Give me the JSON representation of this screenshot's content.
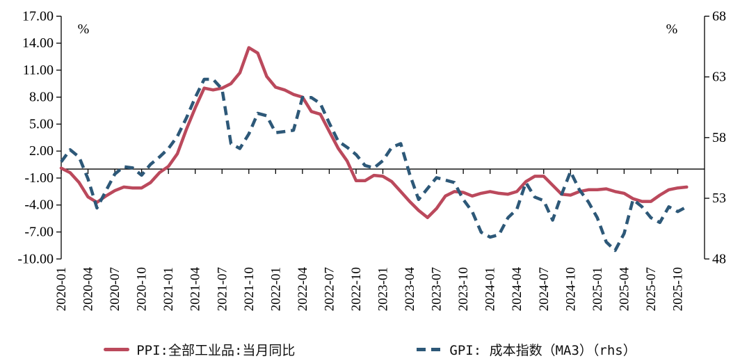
{
  "chart": {
    "left_axis": {
      "unit": "%",
      "tick_labels": [
        "17.00",
        "14.00",
        "11.00",
        "8.00",
        "5.00",
        "2.00",
        "-1.00",
        "-4.00",
        "-7.00",
        "-10.00"
      ],
      "tick_values": [
        17,
        14,
        11,
        8,
        5,
        2,
        -1,
        -4,
        -7,
        -10
      ],
      "min": -10,
      "max": 17
    },
    "right_axis": {
      "unit": "%",
      "tick_labels": [
        "68",
        "63",
        "58",
        "53",
        "48"
      ],
      "tick_values": [
        68,
        63,
        58,
        53,
        48
      ],
      "min": 48,
      "max": 68
    },
    "x_axis": {
      "tick_labels": [
        "2020-01",
        "2020-04",
        "2020-07",
        "2020-10",
        "2021-01",
        "2021-04",
        "2021-07",
        "2021-10",
        "2022-01",
        "2022-04",
        "2022-07",
        "2022-10",
        "2023-01",
        "2023-04",
        "2023-07",
        "2023-10",
        "2024-01",
        "2024-04",
        "2024-07",
        "2024-10",
        "2025-01",
        "2025-04",
        "2025-07",
        "2025-10"
      ]
    },
    "legend": [
      {
        "label": "PPI:全部工业品:当月同比",
        "color": "#bb495c",
        "style": "solid"
      },
      {
        "label": "GPI: 成本指数（MA3）（rhs）",
        "color": "#2d5878",
        "style": "dashed"
      }
    ],
    "colors": {
      "ppi_red": "#bb495c",
      "gpi_blue": "#2d5878",
      "axis_black": "#000000"
    }
  },
  "chart_data": {
    "type": "line",
    "title": "",
    "xlabel": "",
    "ylabel_left": "%",
    "ylabel_right": "%",
    "grid": false,
    "legend_position": "bottom-center",
    "x_range": [
      "2020-01",
      "2025-12"
    ],
    "left_ylim": [
      -10,
      17
    ],
    "right_ylim": [
      48,
      68
    ],
    "zero_line_left_axis": 0,
    "x": [
      "2020-01",
      "2020-02",
      "2020-03",
      "2020-04",
      "2020-05",
      "2020-06",
      "2020-07",
      "2020-08",
      "2020-09",
      "2020-10",
      "2020-11",
      "2020-12",
      "2021-01",
      "2021-02",
      "2021-03",
      "2021-04",
      "2021-05",
      "2021-06",
      "2021-07",
      "2021-08",
      "2021-09",
      "2021-10",
      "2021-11",
      "2021-12",
      "2022-01",
      "2022-02",
      "2022-03",
      "2022-04",
      "2022-05",
      "2022-06",
      "2022-07",
      "2022-08",
      "2022-09",
      "2022-10",
      "2022-11",
      "2022-12",
      "2023-01",
      "2023-02",
      "2023-03",
      "2023-04",
      "2023-05",
      "2023-06",
      "2023-07",
      "2023-08",
      "2023-09",
      "2023-10",
      "2023-11",
      "2023-12",
      "2024-01",
      "2024-02",
      "2024-03",
      "2024-04",
      "2024-05",
      "2024-06",
      "2024-07",
      "2024-08",
      "2024-09",
      "2024-10",
      "2024-11",
      "2024-12",
      "2025-01",
      "2025-02",
      "2025-03",
      "2025-04",
      "2025-05",
      "2025-06",
      "2025-07",
      "2025-08",
      "2025-09",
      "2025-10",
      "2025-11"
    ],
    "series": [
      {
        "name": "PPI:全部工业品:当月同比",
        "axis": "left",
        "style": "solid",
        "color": "#bb495c",
        "values": [
          0.1,
          -0.4,
          -1.5,
          -3.1,
          -3.7,
          -3.0,
          -2.4,
          -2.0,
          -2.1,
          -2.1,
          -1.5,
          -0.4,
          0.3,
          1.7,
          4.4,
          6.8,
          9.0,
          8.8,
          9.0,
          9.5,
          10.7,
          13.5,
          12.9,
          10.3,
          9.1,
          8.8,
          8.3,
          8.0,
          6.4,
          6.1,
          4.2,
          2.3,
          0.9,
          -1.3,
          -1.3,
          -0.7,
          -0.8,
          -1.4,
          -2.5,
          -3.6,
          -4.6,
          -5.4,
          -4.4,
          -3.0,
          -2.5,
          -2.6,
          -3.0,
          -2.7,
          -2.5,
          -2.7,
          -2.8,
          -2.5,
          -1.4,
          -0.8,
          -0.8,
          -1.8,
          -2.8,
          -2.9,
          -2.5,
          -2.3,
          -2.3,
          -2.2,
          -2.5,
          -2.7,
          -3.3,
          -3.6,
          -3.6,
          -2.9,
          -2.3,
          -2.1,
          -2.0
        ]
      },
      {
        "name": "GPI: 成本指数（MA3）（rhs）",
        "axis": "right",
        "style": "dashed",
        "color": "#2d5878",
        "values": [
          56.0,
          57.0,
          56.4,
          54.6,
          52.2,
          53.6,
          55.0,
          55.6,
          55.5,
          54.9,
          55.8,
          56.4,
          57.1,
          58.1,
          59.6,
          61.3,
          62.8,
          62.8,
          62.0,
          57.5,
          57.1,
          58.3,
          60.0,
          59.8,
          58.4,
          58.5,
          58.6,
          61.3,
          61.3,
          60.8,
          59.2,
          57.7,
          57.2,
          56.6,
          55.7,
          55.5,
          56.1,
          57.2,
          57.5,
          55.0,
          52.9,
          53.8,
          54.7,
          54.5,
          54.3,
          52.9,
          51.9,
          50.2,
          49.8,
          50.0,
          51.4,
          52.1,
          54.3,
          53.1,
          52.8,
          51.2,
          53.3,
          55.2,
          53.7,
          52.7,
          51.4,
          49.4,
          48.7,
          50.1,
          52.9,
          52.3,
          51.4,
          51.0,
          52.3,
          51.9,
          52.3
        ]
      }
    ]
  }
}
